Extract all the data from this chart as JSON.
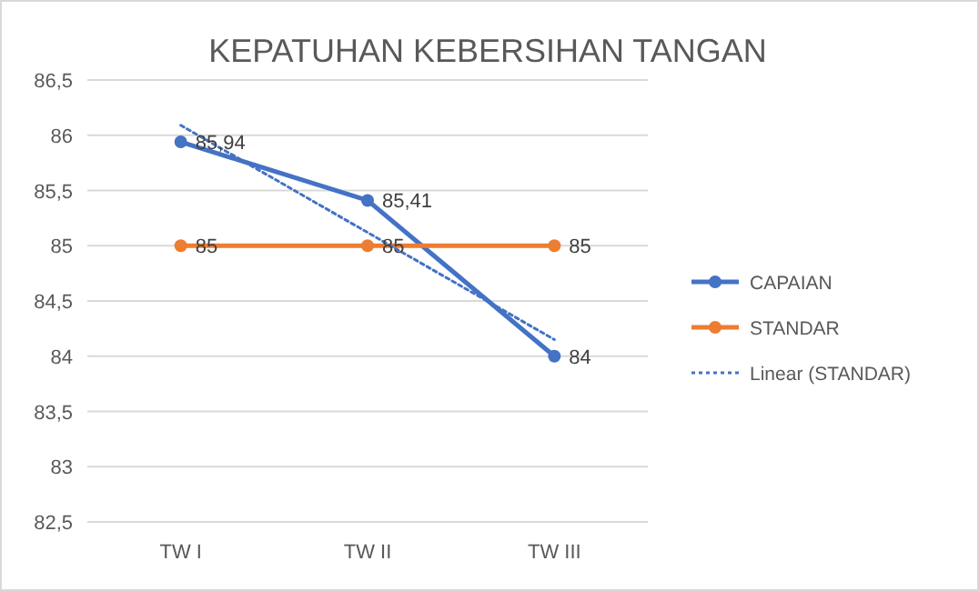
{
  "chart_data": {
    "type": "line",
    "title": "KEPATUHAN KEBERSIHAN TANGAN",
    "categories": [
      "TW I",
      "TW II",
      "TW III"
    ],
    "series": [
      {
        "name": "CAPAIAN",
        "color": "#4472c4",
        "values": [
          85.94,
          85.41,
          84
        ],
        "value_labels": [
          "85,94",
          "85,41",
          "84"
        ],
        "marker": "circle",
        "line_style": "solid"
      },
      {
        "name": "STANDAR",
        "color": "#ed7d31",
        "values": [
          85,
          85,
          85
        ],
        "value_labels": [
          "85",
          "85",
          "85"
        ],
        "marker": "circle",
        "line_style": "solid"
      },
      {
        "name": "Linear (STANDAR)",
        "color": "#4472c4",
        "values": [
          86.09,
          85.12,
          84.15
        ],
        "marker": "none",
        "line_style": "dotted"
      }
    ],
    "ylim": [
      82.5,
      86.5
    ],
    "yticks": [
      {
        "value": 82.5,
        "label": "82,5"
      },
      83,
      {
        "value": 83.5,
        "label": "83,5"
      },
      84,
      {
        "value": 84.5,
        "label": "84,5"
      },
      85,
      {
        "value": 85.5,
        "label": "85,5"
      },
      86,
      {
        "value": 86.5,
        "label": "86,5"
      }
    ],
    "grid": "y",
    "legend": "right"
  }
}
